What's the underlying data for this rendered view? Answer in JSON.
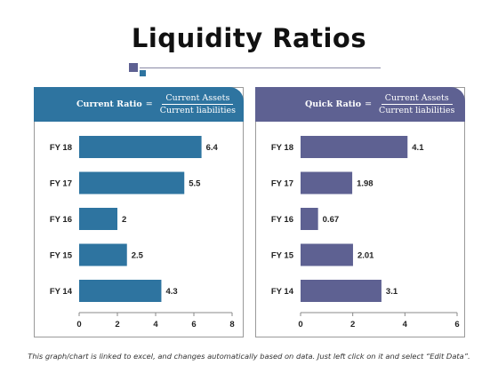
{
  "title": "Liquidity Ratios",
  "footer": "This graph/chart is linked to excel, and changes automatically based on data. Just left click on it and select “Edit Data”.",
  "panels": [
    {
      "label": "Current Ratio",
      "eq": "=",
      "numerator": "Current Assets",
      "denominator": "Current liabilities"
    },
    {
      "label": "Quick Ratio",
      "eq": "=",
      "numerator": "Current Assets",
      "denominator": "Current liabilities"
    }
  ],
  "chart_data": [
    {
      "type": "bar",
      "orientation": "horizontal",
      "categories": [
        "FY 18",
        "FY 17",
        "FY 16",
        "FY 15",
        "FY 14"
      ],
      "values": [
        6.4,
        5.5,
        2,
        2.5,
        4.3
      ],
      "value_labels": [
        "6.4",
        "5.5",
        "2",
        "2.5",
        "4.3"
      ],
      "xlim": [
        0,
        8
      ],
      "xticks": [
        "0",
        "2",
        "4",
        "6",
        "8"
      ],
      "color": "#2e74a0",
      "grid": false
    },
    {
      "type": "bar",
      "orientation": "horizontal",
      "categories": [
        "FY 18",
        "FY 17",
        "FY 16",
        "FY 15",
        "FY 14"
      ],
      "values": [
        4.1,
        1.98,
        0.67,
        2.01,
        3.1
      ],
      "value_labels": [
        "4.1",
        "1.98",
        "0.67",
        "2.01",
        "3.1"
      ],
      "xlim": [
        0,
        6
      ],
      "xticks": [
        "0",
        "2",
        "4",
        "6"
      ],
      "color": "#5e6192",
      "grid": false
    }
  ]
}
